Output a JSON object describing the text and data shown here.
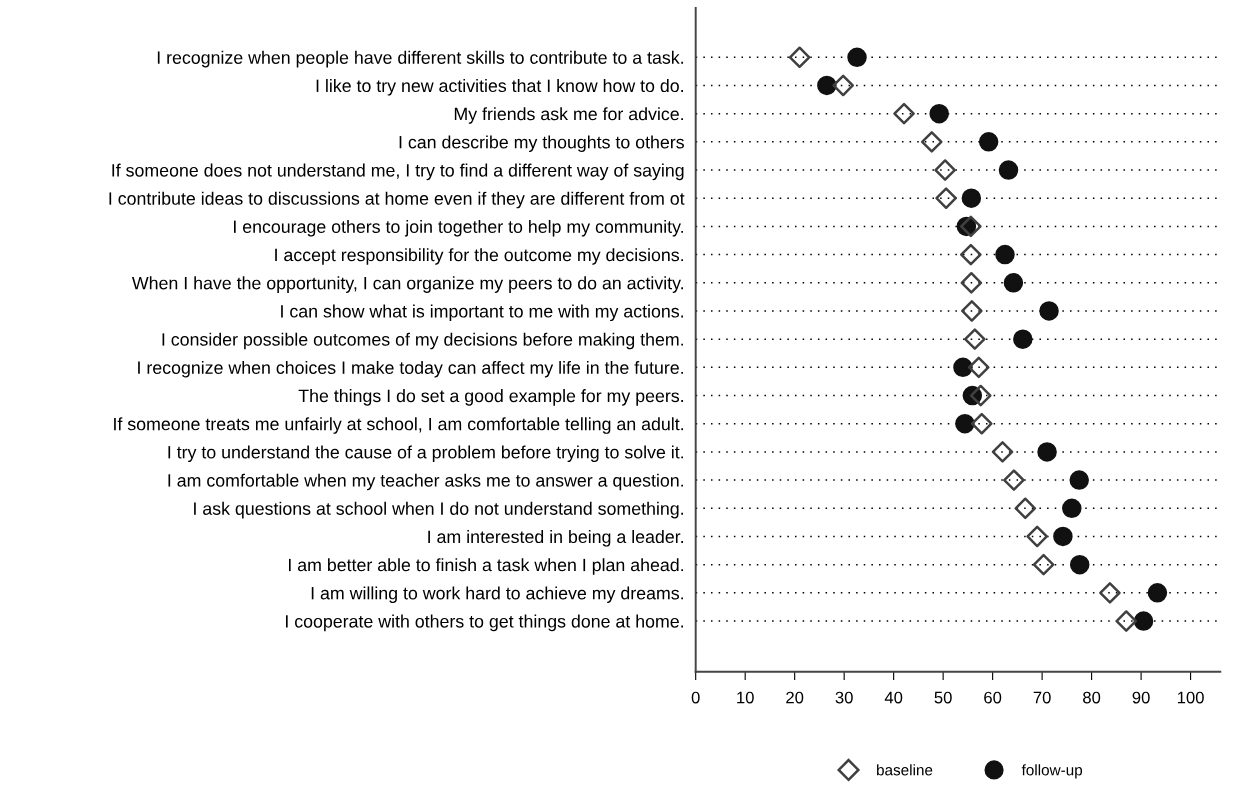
{
  "chart_data": {
    "type": "scatter",
    "orientation": "horizontal",
    "categories": [
      "I recognize when people have different skills to contribute to a task.",
      "I like to try new activities that I know how to do.",
      "My friends ask me for advice.",
      "I can describe my thoughts to others",
      "If someone does not understand me, I try to find a different way of saying",
      "I contribute ideas to discussions at home even if they are different from ot",
      "I encourage others to join together to help my community.",
      "I accept responsibility for the outcome my decisions.",
      "When I have the opportunity, I can organize my peers to do an activity.",
      "I can show what is important to me with my actions.",
      "I consider possible outcomes of my decisions before making them.",
      "I recognize when choices I make today can affect my life in the future.",
      "The things I do set a good example for my peers.",
      "If someone treats me unfairly at school, I am comfortable telling an adult.",
      "I try to understand the cause of a problem before trying to solve it.",
      "I am comfortable when my teacher asks me to answer a question.",
      "I ask questions at school when I do not understand something.",
      "I am interested in being a leader.",
      "I am better able to finish a task when I plan ahead.",
      "I am willing to work hard to achieve my dreams.",
      "I cooperate with others to get things done at home."
    ],
    "series": [
      {
        "name": "baseline",
        "color": "#404040",
        "marker": "diamond",
        "values": [
          21,
          29.8,
          42.1,
          47.7,
          50.4,
          50.6,
          55.6,
          55.6,
          55.7,
          55.8,
          56.4,
          57.2,
          57.6,
          57.8,
          62,
          64.3,
          66.6,
          69,
          70.3,
          83.7,
          87
        ]
      },
      {
        "name": "follow-up",
        "color": "#111111",
        "marker": "circle",
        "values": [
          32.6,
          26.5,
          49.2,
          59.2,
          63.2,
          55.7,
          54.7,
          62.5,
          64.2,
          71.4,
          66.1,
          54,
          55.9,
          54.4,
          71,
          77.5,
          76,
          74.2,
          77.6,
          93.3,
          90.5
        ]
      }
    ],
    "xlim": [
      0,
      106
    ],
    "xticks": [
      0,
      10,
      20,
      30,
      40,
      50,
      60,
      70,
      80,
      90,
      100
    ],
    "grid": "y",
    "legend": "bottom"
  }
}
